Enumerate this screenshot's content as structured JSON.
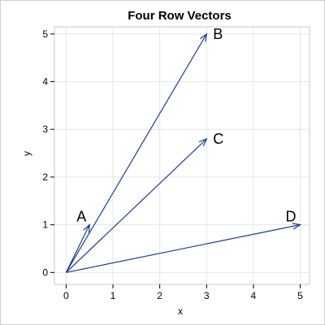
{
  "chart_data": {
    "type": "vector",
    "title": "Four Row Vectors",
    "xlabel": "x",
    "ylabel": "y",
    "xlim": [
      -0.25,
      5.2
    ],
    "ylim": [
      -0.25,
      5.15
    ],
    "xticks": [
      0,
      1,
      2,
      3,
      4,
      5
    ],
    "yticks": [
      0,
      1,
      2,
      3,
      4,
      5
    ],
    "grid": true,
    "line_color": "#1f3d8c",
    "vectors": [
      {
        "name": "A",
        "origin": [
          0,
          0
        ],
        "end": [
          0.5,
          1
        ]
      },
      {
        "name": "B",
        "origin": [
          0,
          0
        ],
        "end": [
          3,
          5
        ]
      },
      {
        "name": "C",
        "origin": [
          0,
          0
        ],
        "end": [
          3,
          2.8
        ]
      },
      {
        "name": "D",
        "origin": [
          0,
          0
        ],
        "end": [
          5,
          1
        ]
      }
    ]
  }
}
